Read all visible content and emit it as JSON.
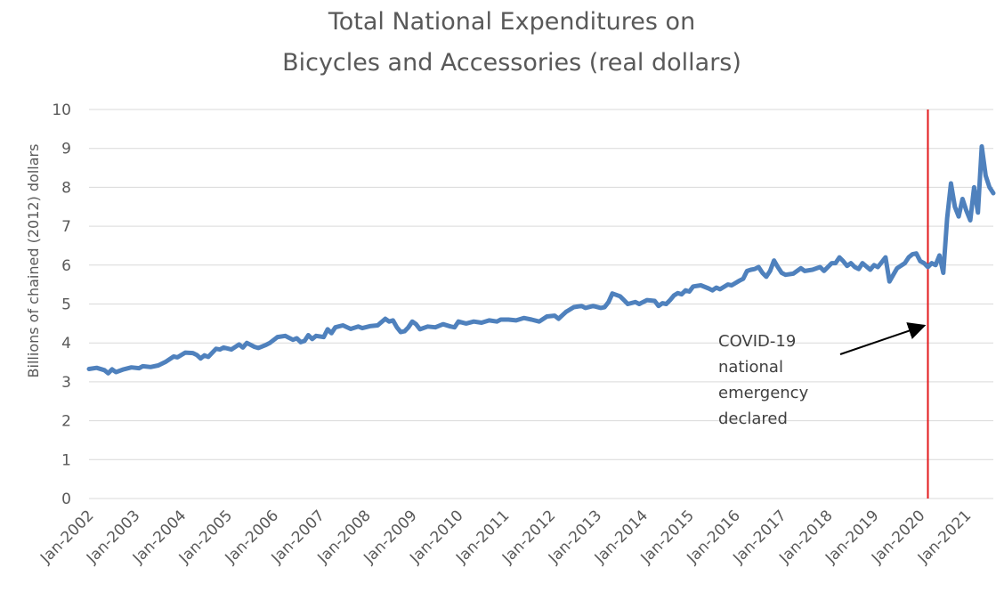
{
  "chart_data": {
    "type": "line",
    "title_lines": [
      "Total National Expenditures on",
      "Bicycles and Accessories (real dollars)"
    ],
    "ylabel": "Billions of chained  (2012) dollars",
    "xlabel": "",
    "ylim": [
      0,
      10
    ],
    "yticks": [
      0,
      1,
      2,
      3,
      4,
      5,
      6,
      7,
      8,
      9,
      10
    ],
    "xlim": [
      "2002-01",
      "2021-08"
    ],
    "xtick_labels": [
      "Jan-2002",
      "Jan-2003",
      "Jan-2004",
      "Jan-2005",
      "Jan-2006",
      "Jan-2007",
      "Jan-2008",
      "Jan-2009",
      "Jan-2010",
      "Jan-2011",
      "Jan-2012",
      "Jan-2013",
      "Jan-2014",
      "Jan-2015",
      "Jan-2016",
      "Jan-2017",
      "Jan-2018",
      "Jan-2019",
      "Jan-2020",
      "Jan-2021"
    ],
    "grid": "horizontal",
    "legend": "none",
    "series": [
      {
        "color": "#4f81bd",
        "points": [
          [
            "2002-01",
            3.33
          ],
          [
            "2002-03",
            3.36
          ],
          [
            "2002-05",
            3.3
          ],
          [
            "2002-06",
            3.22
          ],
          [
            "2002-07",
            3.32
          ],
          [
            "2002-08",
            3.25
          ],
          [
            "2002-10",
            3.32
          ],
          [
            "2002-12",
            3.37
          ],
          [
            "2003-02",
            3.35
          ],
          [
            "2003-03",
            3.4
          ],
          [
            "2003-05",
            3.38
          ],
          [
            "2003-07",
            3.42
          ],
          [
            "2003-09",
            3.52
          ],
          [
            "2003-11",
            3.65
          ],
          [
            "2003-12",
            3.63
          ],
          [
            "2004-02",
            3.75
          ],
          [
            "2004-04",
            3.74
          ],
          [
            "2004-05",
            3.69
          ],
          [
            "2004-06",
            3.6
          ],
          [
            "2004-07",
            3.68
          ],
          [
            "2004-08",
            3.64
          ],
          [
            "2004-10",
            3.85
          ],
          [
            "2004-11",
            3.83
          ],
          [
            "2004-12",
            3.88
          ],
          [
            "2005-02",
            3.83
          ],
          [
            "2005-04",
            3.96
          ],
          [
            "2005-05",
            3.88
          ],
          [
            "2005-06",
            4.0
          ],
          [
            "2005-08",
            3.9
          ],
          [
            "2005-09",
            3.87
          ],
          [
            "2005-11",
            3.95
          ],
          [
            "2005-12",
            4.0
          ],
          [
            "2006-02",
            4.15
          ],
          [
            "2006-04",
            4.18
          ],
          [
            "2006-06",
            4.08
          ],
          [
            "2006-07",
            4.12
          ],
          [
            "2006-08",
            4.02
          ],
          [
            "2006-09",
            4.05
          ],
          [
            "2006-10",
            4.2
          ],
          [
            "2006-11",
            4.1
          ],
          [
            "2006-12",
            4.18
          ],
          [
            "2007-02",
            4.15
          ],
          [
            "2007-03",
            4.35
          ],
          [
            "2007-04",
            4.25
          ],
          [
            "2007-05",
            4.4
          ],
          [
            "2007-07",
            4.45
          ],
          [
            "2007-09",
            4.36
          ],
          [
            "2007-11",
            4.42
          ],
          [
            "2007-12",
            4.38
          ],
          [
            "2008-02",
            4.43
          ],
          [
            "2008-04",
            4.45
          ],
          [
            "2008-06",
            4.62
          ],
          [
            "2008-07",
            4.55
          ],
          [
            "2008-08",
            4.58
          ],
          [
            "2008-09",
            4.4
          ],
          [
            "2008-10",
            4.28
          ],
          [
            "2008-11",
            4.3
          ],
          [
            "2008-12",
            4.4
          ],
          [
            "2009-01",
            4.55
          ],
          [
            "2009-02",
            4.48
          ],
          [
            "2009-03",
            4.35
          ],
          [
            "2009-05",
            4.42
          ],
          [
            "2009-07",
            4.4
          ],
          [
            "2009-09",
            4.48
          ],
          [
            "2009-11",
            4.42
          ],
          [
            "2009-12",
            4.4
          ],
          [
            "2010-01",
            4.55
          ],
          [
            "2010-03",
            4.5
          ],
          [
            "2010-05",
            4.55
          ],
          [
            "2010-07",
            4.52
          ],
          [
            "2010-09",
            4.58
          ],
          [
            "2010-11",
            4.55
          ],
          [
            "2010-12",
            4.6
          ],
          [
            "2011-02",
            4.6
          ],
          [
            "2011-04",
            4.58
          ],
          [
            "2011-06",
            4.64
          ],
          [
            "2011-08",
            4.6
          ],
          [
            "2011-10",
            4.55
          ],
          [
            "2011-12",
            4.68
          ],
          [
            "2012-02",
            4.7
          ],
          [
            "2012-03",
            4.62
          ],
          [
            "2012-05",
            4.8
          ],
          [
            "2012-07",
            4.92
          ],
          [
            "2012-09",
            4.95
          ],
          [
            "2012-10",
            4.9
          ],
          [
            "2012-12",
            4.95
          ],
          [
            "2013-02",
            4.9
          ],
          [
            "2013-03",
            4.92
          ],
          [
            "2013-04",
            5.05
          ],
          [
            "2013-05",
            5.27
          ],
          [
            "2013-07",
            5.2
          ],
          [
            "2013-08",
            5.1
          ],
          [
            "2013-09",
            5.0
          ],
          [
            "2013-11",
            5.05
          ],
          [
            "2013-12",
            5.0
          ],
          [
            "2014-02",
            5.1
          ],
          [
            "2014-04",
            5.08
          ],
          [
            "2014-05",
            4.95
          ],
          [
            "2014-06",
            5.02
          ],
          [
            "2014-07",
            5.0
          ],
          [
            "2014-08",
            5.1
          ],
          [
            "2014-09",
            5.22
          ],
          [
            "2014-10",
            5.28
          ],
          [
            "2014-11",
            5.25
          ],
          [
            "2014-12",
            5.35
          ],
          [
            "2015-01",
            5.32
          ],
          [
            "2015-02",
            5.45
          ],
          [
            "2015-04",
            5.48
          ],
          [
            "2015-06",
            5.4
          ],
          [
            "2015-07",
            5.35
          ],
          [
            "2015-08",
            5.42
          ],
          [
            "2015-09",
            5.38
          ],
          [
            "2015-11",
            5.5
          ],
          [
            "2015-12",
            5.48
          ],
          [
            "2016-02",
            5.6
          ],
          [
            "2016-03",
            5.65
          ],
          [
            "2016-04",
            5.85
          ],
          [
            "2016-05",
            5.88
          ],
          [
            "2016-06",
            5.9
          ],
          [
            "2016-07",
            5.95
          ],
          [
            "2016-08",
            5.8
          ],
          [
            "2016-09",
            5.7
          ],
          [
            "2016-10",
            5.85
          ],
          [
            "2016-11",
            6.12
          ],
          [
            "2016-12",
            5.95
          ],
          [
            "2017-01",
            5.8
          ],
          [
            "2017-02",
            5.75
          ],
          [
            "2017-04",
            5.78
          ],
          [
            "2017-06",
            5.92
          ],
          [
            "2017-07",
            5.85
          ],
          [
            "2017-09",
            5.88
          ],
          [
            "2017-11",
            5.95
          ],
          [
            "2017-12",
            5.85
          ],
          [
            "2018-02",
            6.05
          ],
          [
            "2018-03",
            6.05
          ],
          [
            "2018-04",
            6.2
          ],
          [
            "2018-05",
            6.1
          ],
          [
            "2018-06",
            5.98
          ],
          [
            "2018-07",
            6.05
          ],
          [
            "2018-08",
            5.95
          ],
          [
            "2018-09",
            5.9
          ],
          [
            "2018-10",
            6.05
          ],
          [
            "2018-12",
            5.88
          ],
          [
            "2019-01",
            6.0
          ],
          [
            "2019-02",
            5.95
          ],
          [
            "2019-04",
            6.2
          ],
          [
            "2019-05",
            5.58
          ],
          [
            "2019-06",
            5.75
          ],
          [
            "2019-07",
            5.92
          ],
          [
            "2019-09",
            6.05
          ],
          [
            "2019-10",
            6.2
          ],
          [
            "2019-11",
            6.28
          ],
          [
            "2019-12",
            6.3
          ],
          [
            "2020-01",
            6.1
          ],
          [
            "2020-02",
            6.05
          ],
          [
            "2020-03",
            5.95
          ],
          [
            "2020-04",
            6.05
          ],
          [
            "2020-05",
            6.0
          ],
          [
            "2020-06",
            6.25
          ],
          [
            "2020-07",
            5.8
          ],
          [
            "2020-08",
            7.2
          ],
          [
            "2020-09",
            8.1
          ],
          [
            "2020-10",
            7.5
          ],
          [
            "2020-11",
            7.25
          ],
          [
            "2020-12",
            7.7
          ],
          [
            "2021-01",
            7.4
          ],
          [
            "2021-02",
            7.15
          ],
          [
            "2021-03",
            8.0
          ],
          [
            "2021-04",
            7.35
          ],
          [
            "2021-05",
            9.05
          ],
          [
            "2021-06",
            8.3
          ],
          [
            "2021-07",
            8.0
          ],
          [
            "2021-08",
            7.85
          ]
        ]
      }
    ],
    "marker": {
      "x": "2020-03",
      "color": "#e31a1c"
    },
    "annotation": {
      "lines": [
        "COVID-19",
        "national",
        "emergency",
        "declared"
      ],
      "arrow_to": {
        "x": "2020-03",
        "y": 4.4
      }
    },
    "colors": {
      "grid": "#d9d9d9",
      "text": "#595959",
      "axis": "#bfbfbf"
    }
  }
}
